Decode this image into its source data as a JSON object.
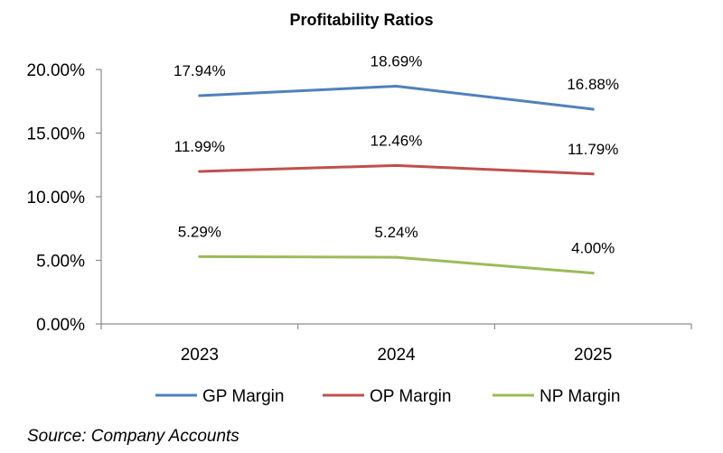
{
  "chart_data": {
    "type": "line",
    "title": "Profitability Ratios",
    "xlabel": "",
    "ylabel": "",
    "categories": [
      "2023",
      "2024",
      "2025"
    ],
    "ylim": [
      0,
      20
    ],
    "yticks": [
      "0.00%",
      "5.00%",
      "10.00%",
      "15.00%",
      "20.00%"
    ],
    "ytick_values": [
      0,
      5,
      10,
      15,
      20
    ],
    "grid": false,
    "legend_position": "bottom",
    "series": [
      {
        "name": "GP Margin",
        "color": "#4f81bd",
        "values": [
          17.94,
          18.69,
          16.88
        ],
        "labels": [
          "17.94%",
          "18.69%",
          "16.88%"
        ]
      },
      {
        "name": "OP Margin",
        "color": "#c0504d",
        "values": [
          11.99,
          12.46,
          11.79
        ],
        "labels": [
          "11.99%",
          "12.46%",
          "11.79%"
        ]
      },
      {
        "name": "NP Margin",
        "color": "#9bbb59",
        "values": [
          5.29,
          5.24,
          4.0
        ],
        "labels": [
          "5.29%",
          "5.24%",
          "4.00%"
        ]
      }
    ]
  },
  "footer": {
    "source": "Source: Company Accounts"
  }
}
